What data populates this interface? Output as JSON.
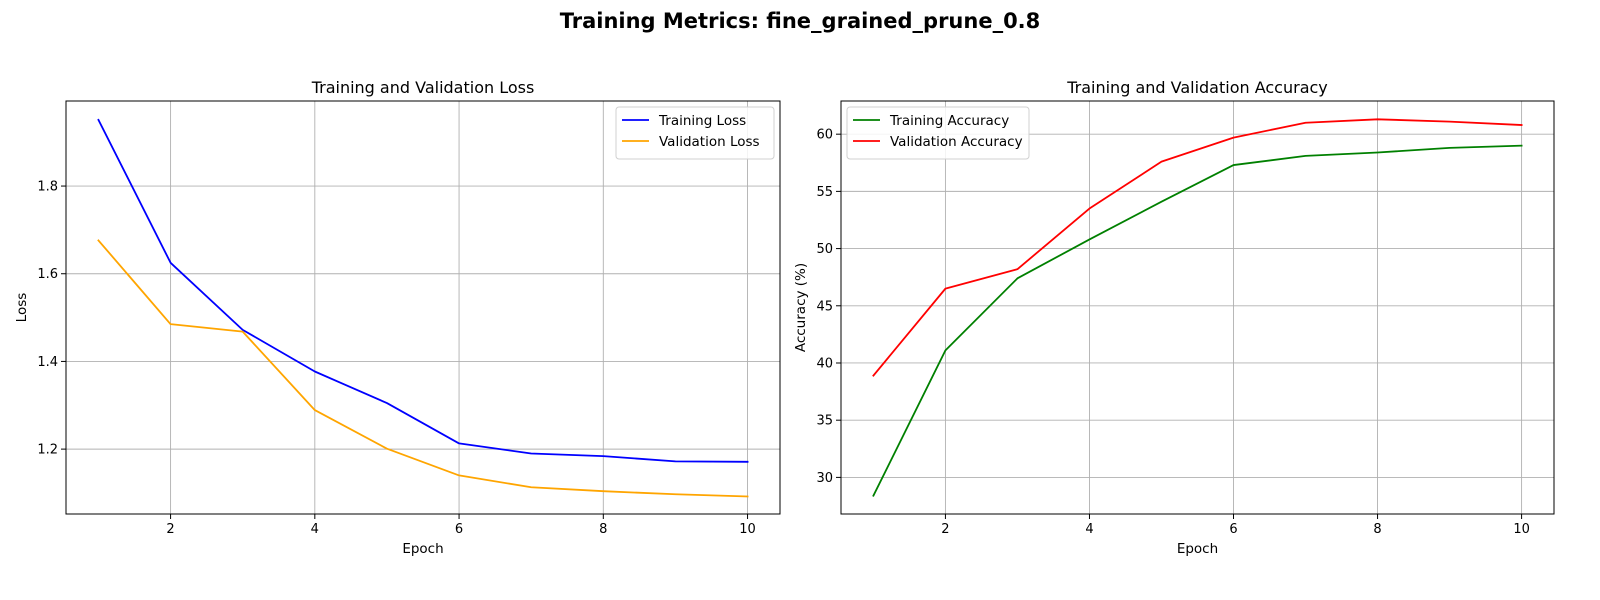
{
  "figure": {
    "suptitle": "Training Metrics: fine_grained_prune_0.8"
  },
  "chart_data": [
    {
      "type": "line",
      "title": "Training and Validation Loss",
      "xlabel": "Epoch",
      "ylabel": "Loss",
      "x": [
        1,
        2,
        3,
        4,
        5,
        6,
        7,
        8,
        9,
        10
      ],
      "xlim": [
        0.55,
        10.45
      ],
      "ylim": [
        1.052,
        1.994
      ],
      "xticks": [
        2,
        4,
        6,
        8,
        10
      ],
      "yticks": [
        1.2,
        1.4,
        1.6,
        1.8
      ],
      "ytick_labels": [
        "1.2",
        "1.4",
        "1.6",
        "1.8"
      ],
      "xtick_labels": [
        "2",
        "4",
        "6",
        "8",
        "10"
      ],
      "grid": true,
      "legend_position": "upper right",
      "series": [
        {
          "name": "Training Loss",
          "color": "#0000ff",
          "values": [
            1.951,
            1.625,
            1.472,
            1.377,
            1.305,
            1.213,
            1.19,
            1.184,
            1.172,
            1.171
          ]
        },
        {
          "name": "Validation Loss",
          "color": "#ffa500",
          "values": [
            1.676,
            1.485,
            1.468,
            1.289,
            1.201,
            1.14,
            1.113,
            1.104,
            1.097,
            1.092
          ]
        }
      ]
    },
    {
      "type": "line",
      "title": "Training and Validation Accuracy",
      "xlabel": "Epoch",
      "ylabel": "Accuracy (%)",
      "x": [
        1,
        2,
        3,
        4,
        5,
        6,
        7,
        8,
        9,
        10
      ],
      "xlim": [
        0.55,
        10.45
      ],
      "ylim": [
        26.8,
        62.9
      ],
      "xticks": [
        2,
        4,
        6,
        8,
        10
      ],
      "yticks": [
        30,
        35,
        40,
        45,
        50,
        55,
        60
      ],
      "ytick_labels": [
        "30",
        "35",
        "40",
        "45",
        "50",
        "55",
        "60"
      ],
      "xtick_labels": [
        "2",
        "4",
        "6",
        "8",
        "10"
      ],
      "grid": true,
      "legend_position": "upper left",
      "series": [
        {
          "name": "Training Accuracy",
          "color": "#008000",
          "values": [
            28.4,
            41.1,
            47.4,
            50.8,
            54.1,
            57.3,
            58.1,
            58.4,
            58.8,
            59.0
          ]
        },
        {
          "name": "Validation Accuracy",
          "color": "#ff0000",
          "values": [
            38.9,
            46.5,
            48.2,
            53.5,
            57.6,
            59.7,
            61.0,
            61.3,
            61.1,
            60.8
          ]
        }
      ]
    }
  ]
}
